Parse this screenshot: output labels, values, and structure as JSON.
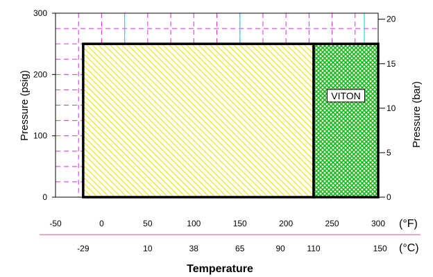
{
  "chart_data": {
    "type": "area",
    "title": "Temperature",
    "ylabel_left": "Pressure (psig)",
    "ylabel_right": "Pressure (bar)",
    "x_axis_f": {
      "unit": "(°F)",
      "range": [
        -50,
        300
      ],
      "ticks": [
        "-50",
        "0",
        "50",
        "100",
        "150",
        "200",
        "250",
        "300"
      ],
      "tick_values": [
        -50,
        0,
        50,
        100,
        150,
        200,
        250,
        300
      ]
    },
    "x_axis_c": {
      "unit": "(°C)",
      "ticks": [
        "-29",
        "10",
        "38",
        "65",
        "90",
        "110",
        "150"
      ],
      "tick_values_f": [
        -20,
        50,
        100,
        150,
        194,
        230,
        302
      ]
    },
    "y_axis_psig": {
      "range": [
        0,
        300
      ],
      "ticks": [
        "0",
        "100",
        "200",
        "300"
      ],
      "tick_values": [
        0,
        100,
        200,
        300
      ]
    },
    "y_axis_bar": {
      "range": [
        0,
        20.68
      ],
      "ticks": [
        "0",
        "5",
        "10",
        "15",
        "20"
      ],
      "tick_values": [
        0,
        5,
        10,
        15,
        20
      ]
    },
    "grid": true,
    "series": [
      {
        "name": "",
        "x_range_f": [
          -20,
          230
        ],
        "pressure_psig": 250,
        "color": "#f2f200"
      },
      {
        "name": "VITON",
        "x_range_f": [
          230,
          300
        ],
        "pressure_psig": 250,
        "color": "#17c217"
      }
    ],
    "colors": {
      "grid": "#e02be0",
      "cyan_marks": "#19e0e0",
      "underline": "#d05088"
    }
  }
}
